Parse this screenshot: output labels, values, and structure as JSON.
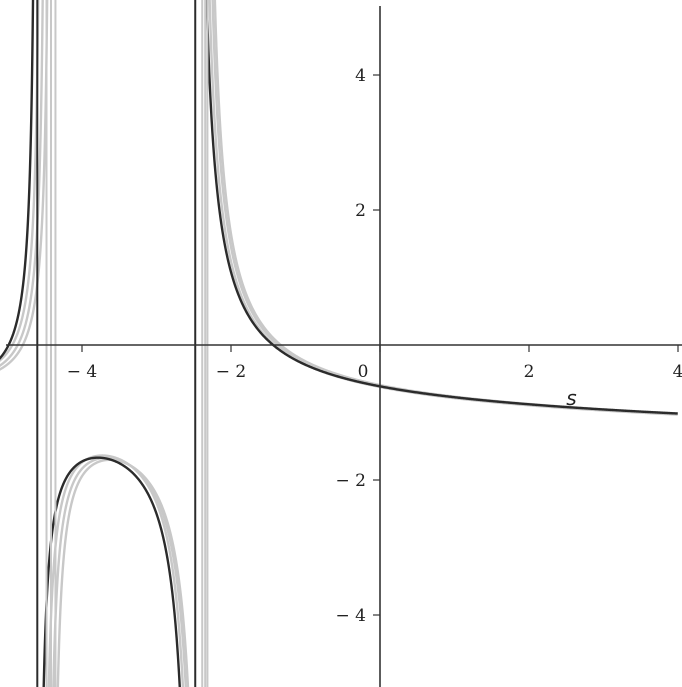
{
  "chart_data": {
    "type": "line",
    "title": "",
    "xlabel": "s",
    "ylabel": "",
    "xlim": [
      -5.65,
      4.0
    ],
    "ylim": [
      -5.0,
      5.0
    ],
    "grid": false,
    "legend": "none",
    "x_ticks": [
      {
        "value": -4,
        "label": "− 4"
      },
      {
        "value": -2,
        "label": "− 2"
      },
      {
        "value": 0,
        "label": "0"
      },
      {
        "value": 2,
        "label": "2"
      },
      {
        "value": 4,
        "label": "4"
      }
    ],
    "y_ticks": [
      {
        "value": -4,
        "label": "− 4"
      },
      {
        "value": -2,
        "label": "− 2"
      },
      {
        "value": 2,
        "label": "2"
      },
      {
        "value": 4,
        "label": "4"
      }
    ],
    "colors": {
      "main_curve": "#2b2b2b",
      "comparison_curves": "#c8c8c8",
      "axes": "#333333"
    },
    "series": [
      {
        "role": "comparison",
        "poles": [
          -4.53,
          -2.44
        ],
        "shift": 0.12,
        "values_desc": "gray approximations"
      },
      {
        "role": "comparison",
        "poles": [
          -4.47,
          -2.4
        ],
        "shift": 0.06
      },
      {
        "role": "comparison",
        "poles": [
          -4.41,
          -2.37
        ],
        "shift": 0.03
      },
      {
        "role": "main",
        "poles": [
          -4.6,
          -2.48
        ],
        "shift": 0.0
      }
    ],
    "vertical_asymptotes": [
      -4.6,
      -2.48
    ]
  }
}
